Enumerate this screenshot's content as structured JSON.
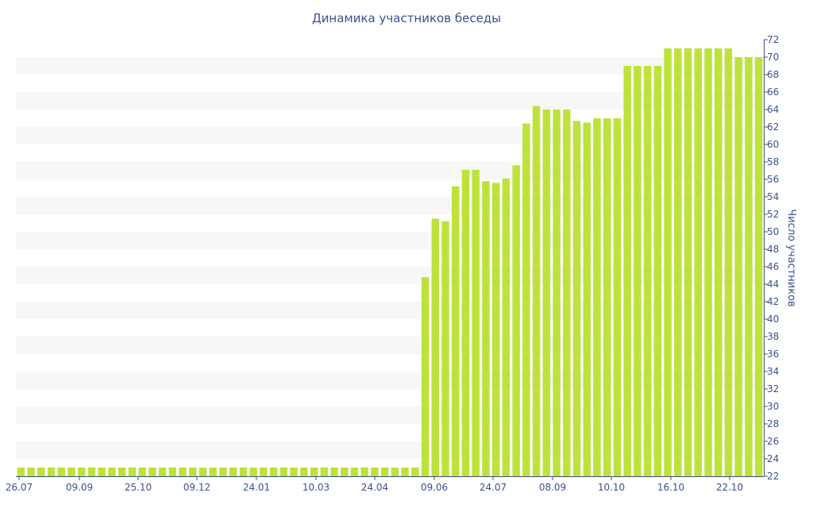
{
  "chart_data": {
    "type": "bar",
    "title": "Динамика участников беседы",
    "xlabel": "",
    "ylabel": "Число участников",
    "ylim": [
      22,
      72
    ],
    "y_ticks": [
      22,
      24,
      26,
      28,
      30,
      32,
      34,
      36,
      38,
      40,
      42,
      44,
      46,
      48,
      50,
      52,
      54,
      56,
      58,
      60,
      62,
      64,
      66,
      68,
      70,
      72
    ],
    "x_tick_labels": [
      "26.07",
      "09.09",
      "25.10",
      "09.12",
      "24.01",
      "10.03",
      "24.04",
      "09.06",
      "24.07",
      "08.09",
      "10.10",
      "16.10",
      "22.10"
    ],
    "y_axis_position": "right",
    "grid": "alternating horizontal bands",
    "legend": "none",
    "series": [
      {
        "values": [
          23,
          23,
          23,
          23,
          23,
          23,
          23,
          23,
          23,
          23,
          23,
          23,
          23,
          23,
          23,
          23,
          23,
          23,
          23,
          23,
          23,
          23,
          23,
          23,
          23,
          23,
          23,
          23,
          23,
          23,
          23,
          23,
          23,
          23,
          23,
          23,
          23,
          23,
          23,
          23,
          44.8,
          51.5,
          51.2,
          55.2,
          57.1,
          57.1,
          55.8,
          55.6,
          56.1,
          57.6,
          62.4,
          64.4,
          64,
          64,
          64,
          62.7,
          62.5,
          63,
          63,
          63,
          69,
          69,
          69,
          69,
          71,
          71,
          71,
          71,
          71,
          71,
          71,
          70,
          70,
          70
        ]
      }
    ]
  },
  "colors": {
    "bar": "#bde23a",
    "band": "#f7f7f7",
    "text": "#3e4f8f",
    "axis": "#3e4f8f"
  }
}
